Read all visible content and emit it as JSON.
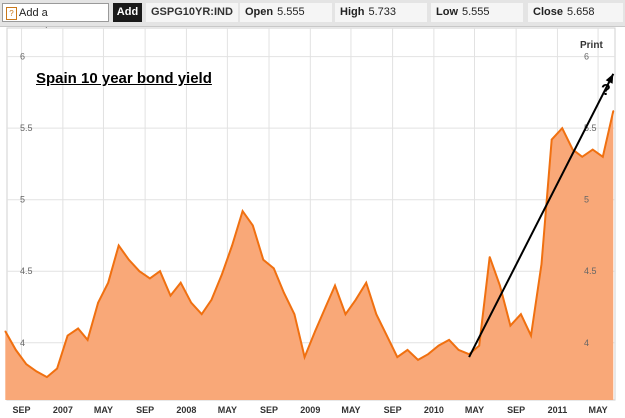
{
  "toolbar": {
    "add_comparison": "Add a Comparison",
    "add_comparison_icon": "help-icon",
    "add_label": "Add",
    "ticker": "GSPG10YR:IND",
    "open_label": "Open",
    "open_value": "5.555",
    "high_label": "High",
    "high_value": "5.733",
    "low_label": "Low",
    "low_value": "5.555",
    "close_label": "Close",
    "close_value": "5.658"
  },
  "print_label": "Print",
  "annotation": {
    "question_mark": "?",
    "arrow_from": [
      "2010-04",
      3.9
    ],
    "arrow_to": [
      "2011-06",
      5.88
    ]
  },
  "colors": {
    "line": "#f07010",
    "area": "#f9a878",
    "grid": "#e2e2e2",
    "arrow": "#000000"
  },
  "chart_data": {
    "type": "area",
    "title": "Spain 10 year bond yield",
    "xlabel": "",
    "ylabel": "",
    "ylim": [
      3.6,
      6.2
    ],
    "xlim": [
      "2006-07-20",
      "2011-06-20"
    ],
    "grid": true,
    "y_ticks": [
      "4",
      "4.5",
      "5",
      "5.5",
      "6"
    ],
    "y_tick_values": [
      4,
      4.5,
      5,
      5.5,
      6
    ],
    "x_ticks": [
      "SEP",
      "2007",
      "MAY",
      "SEP",
      "2008",
      "MAY",
      "SEP",
      "2009",
      "MAY",
      "SEP",
      "2010",
      "MAY",
      "SEP",
      "2011",
      "MAY"
    ],
    "x_tick_dates": [
      "2006-09-01",
      "2007-01-01",
      "2007-05-01",
      "2007-09-01",
      "2008-01-01",
      "2008-05-01",
      "2008-09-01",
      "2009-01-01",
      "2009-05-01",
      "2009-09-01",
      "2010-01-01",
      "2010-05-01",
      "2010-09-01",
      "2011-01-01",
      "2011-05-01"
    ],
    "series": [
      {
        "x": [
          "2006-07",
          "2006-08",
          "2006-09",
          "2006-10",
          "2006-11",
          "2006-12",
          "2007-01",
          "2007-02",
          "2007-03",
          "2007-04",
          "2007-05",
          "2007-06",
          "2007-07",
          "2007-08",
          "2007-09",
          "2007-10",
          "2007-11",
          "2007-12",
          "2008-01",
          "2008-02",
          "2008-03",
          "2008-04",
          "2008-05",
          "2008-06",
          "2008-07",
          "2008-08",
          "2008-09",
          "2008-10",
          "2008-11",
          "2008-12",
          "2009-01",
          "2009-02",
          "2009-03",
          "2009-04",
          "2009-05",
          "2009-06",
          "2009-07",
          "2009-08",
          "2009-09",
          "2009-10",
          "2009-11",
          "2009-12",
          "2010-01",
          "2010-02",
          "2010-03",
          "2010-04",
          "2010-05",
          "2010-06",
          "2010-07",
          "2010-08",
          "2010-09",
          "2010-10",
          "2010-11",
          "2010-12",
          "2011-01",
          "2011-02",
          "2011-03",
          "2011-04",
          "2011-05",
          "2011-06"
        ],
        "values": [
          4.08,
          3.95,
          3.85,
          3.8,
          3.76,
          3.82,
          4.05,
          4.1,
          4.02,
          4.28,
          4.42,
          4.68,
          4.58,
          4.5,
          4.45,
          4.5,
          4.33,
          4.42,
          4.28,
          4.2,
          4.3,
          4.48,
          4.68,
          4.92,
          4.82,
          4.58,
          4.52,
          4.35,
          4.2,
          3.9,
          4.08,
          4.25,
          4.4,
          4.2,
          4.3,
          4.42,
          4.2,
          4.05,
          3.9,
          3.95,
          3.88,
          3.92,
          3.98,
          4.02,
          3.95,
          3.92,
          3.98,
          4.6,
          4.4,
          4.12,
          4.2,
          4.05,
          4.55,
          5.42,
          5.5,
          5.35,
          5.3,
          5.35,
          5.3,
          5.62
        ]
      }
    ]
  }
}
